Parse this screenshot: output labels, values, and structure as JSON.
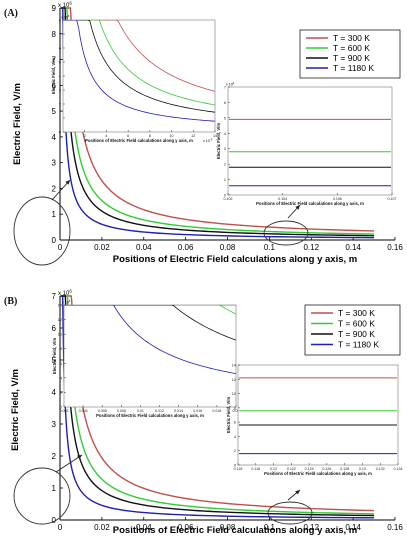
{
  "figure": {
    "colors": {
      "300": "#c0504d",
      "600": "#33cc33",
      "900": "#111111",
      "1180": "#1f1fb4",
      "axis": "#000000",
      "legend_border": "#000000"
    }
  },
  "chart_data": [
    {
      "panel_label": "(A)",
      "type": "line",
      "xlabel": "Positions of Electric Field calculations along y axis, m",
      "ylabel": "Electric Field, V/m",
      "xlim": [
        0,
        0.16
      ],
      "ylim": [
        0,
        9000000
      ],
      "y_exponent": "x 10",
      "y_exponent_power": "6",
      "xticks": [
        "0",
        "0.02",
        "0.04",
        "0.06",
        "0.08",
        "0.1",
        "0.12",
        "0.14",
        "0.16"
      ],
      "yticks": [
        "0",
        "1",
        "2",
        "3",
        "4",
        "5",
        "6",
        "7",
        "8",
        "9"
      ],
      "legend_position": "top-right",
      "series": [
        {
          "name": "T = 300 K",
          "key": "300",
          "A": 45000,
          "floor": 50000,
          "x_end": 0.15
        },
        {
          "name": "T = 600 K",
          "key": "600",
          "A": 30000,
          "floor": 30000,
          "x_end": 0.15
        },
        {
          "name": "T = 900 K",
          "key": "900",
          "A": 22000,
          "floor": 20000,
          "x_end": 0.15
        },
        {
          "name": "T = 1180 K",
          "key": "1180",
          "A": 12000,
          "floor": 10000,
          "x_end": 0.15
        }
      ],
      "insets": [
        {
          "name": "left-inset",
          "xlabel": "Positions of Electric Field calculations along y axis, m",
          "ylabel": "Electric Field, V/m",
          "x_exponent": "x 10",
          "x_exponent_power": "-3",
          "y_exponent": "x 10",
          "y_exponent_power": "6",
          "xlim": [
            0,
            0.014
          ],
          "ylim": [
            0,
            9000000
          ],
          "xticks": [
            "2",
            "4",
            "6",
            "8",
            "10",
            "12",
            "14"
          ],
          "yticks": [
            "0",
            "1",
            "2",
            "3",
            "4",
            "5",
            "6",
            "7",
            "8"
          ]
        },
        {
          "name": "right-inset",
          "xlabel": "Positions of Electric Field calculations along y axis, m",
          "ylabel": "Electric Field, V/m",
          "y_exponent": "x 10",
          "y_exponent_power": "4",
          "xlim": [
            0.1,
            0.108
          ],
          "ylim": [
            0,
            7
          ],
          "xticks": [
            "0.102",
            "0.104",
            "0.106",
            "0.107"
          ],
          "yticks": [
            "0",
            "1",
            "2",
            "3",
            "4",
            "5",
            "6",
            "7"
          ],
          "levels": [
            {
              "key": "300",
              "value": 4.9
            },
            {
              "key": "600",
              "value": 2.8
            },
            {
              "key": "900",
              "value": 1.8
            },
            {
              "key": "1180",
              "value": 0.6
            }
          ]
        }
      ]
    },
    {
      "panel_label": "(B)",
      "type": "line",
      "xlabel": "Positions of Electric Field calculations along y axis, m",
      "ylabel": "Electric Field, V/m",
      "xlim": [
        0,
        0.16
      ],
      "ylim": [
        0,
        7000000
      ],
      "y_exponent": "x 10",
      "y_exponent_power": "6",
      "xticks": [
        "0",
        "0.02",
        "0.04",
        "0.06",
        "0.08",
        "0.1",
        "0.12",
        "0.14",
        "0.16"
      ],
      "yticks": [
        "0",
        "1",
        "2",
        "3",
        "4",
        "5",
        "6",
        "7"
      ],
      "legend_position": "top-right",
      "series": [
        {
          "name": "T = 300 K",
          "key": "300",
          "A": 38000,
          "floor": 40000,
          "x_end": 0.15
        },
        {
          "name": "T = 600 K",
          "key": "600",
          "A": 25000,
          "floor": 25000,
          "x_end": 0.15
        },
        {
          "name": "T = 900 K",
          "key": "900",
          "A": 18000,
          "floor": 18000,
          "x_end": 0.15
        },
        {
          "name": "T = 1180 K",
          "key": "1180",
          "A": 9000,
          "floor": 8000,
          "x_end": 0.15
        }
      ],
      "insets": [
        {
          "name": "left-inset",
          "xlabel": "Positions of Electric Field calculations along y axis, m",
          "ylabel": "Electric Field, V/m",
          "y_exponent": "x 10",
          "y_exponent_power": "5",
          "xlim": [
            0.001,
            0.02
          ],
          "ylim": [
            0,
            14
          ],
          "xticks": [
            "0.002",
            "0.004",
            "0.006",
            "0.008",
            "0.01",
            "0.012",
            "0.014",
            "0.016",
            "0.018",
            "0.02"
          ],
          "yticks": [
            "0",
            "2",
            "4",
            "6",
            "8",
            "10",
            "12",
            "14"
          ]
        },
        {
          "name": "right-inset",
          "xlabel": "Positions of Electric Field calculations along y axis, m",
          "ylabel": "Electric Field, V/m",
          "xlim": [
            0.116,
            0.134
          ],
          "ylim": [
            0,
            14
          ],
          "xticks": [
            "0.116",
            "0.118",
            "0.12",
            "0.122",
            "0.124",
            "0.126",
            "0.128",
            "0.13",
            "0.132",
            "0.134"
          ],
          "yticks": [
            "0",
            "2",
            "4",
            "6",
            "8",
            "10",
            "12",
            "14"
          ],
          "levels": [
            {
              "key": "300",
              "value": 12.2
            },
            {
              "key": "600",
              "value": 7.6
            },
            {
              "key": "900",
              "value": 5.6
            },
            {
              "key": "1180",
              "value": 1.6
            }
          ]
        }
      ]
    }
  ]
}
